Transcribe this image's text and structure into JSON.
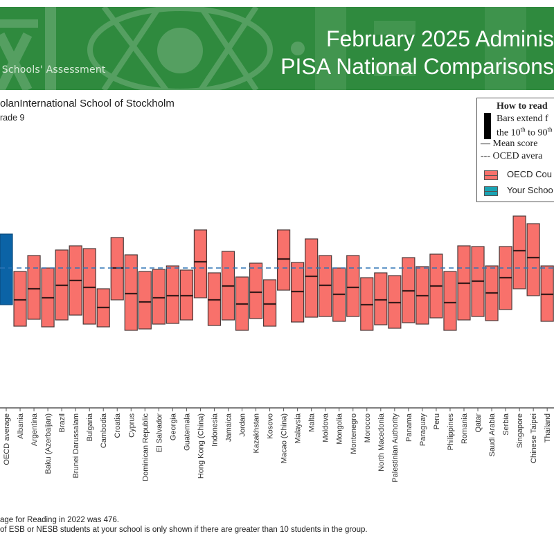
{
  "header": {
    "org_text": "l Schools' Assessment",
    "title_line1": "February 2025 Adminis",
    "title_line2": "PISA National Comparisons",
    "banner_color": "#2f8a3e"
  },
  "subheader": {
    "school": "olanInternational School of Stockholm",
    "grade": "rade 9"
  },
  "legend": {
    "title": "How to read",
    "bars_line1": "Bars extend f",
    "bars_line2_pre": "the 10",
    "bars_line2_sup1": "th",
    "bars_line2_mid": " to 90",
    "bars_line2_sup2": "th",
    "mean_label": "—  Mean score",
    "oced_label": "---  OCED avera",
    "oecd_countries": "OECD Cou",
    "your_school": "Your Schoo"
  },
  "footnotes": {
    "line1": "age for Reading in 2022 was 476.",
    "line2": "of ESB or NESB students at your school is only shown if there are greater than 10 students in the group."
  },
  "chart_data": {
    "type": "bar",
    "subtype": "floating-range-with-mean",
    "title": "PISA National Comparisons",
    "xlabel": "",
    "ylabel": "",
    "grid": false,
    "legend_position": "top-right",
    "reference_line": {
      "label": "OECD average",
      "value": 476,
      "style": "dashed",
      "color": "#2e75b6"
    },
    "colors": {
      "oecd_average": "#0b63a6",
      "country": "#f8716b",
      "your_school": "#1aa3b3",
      "mean_line": "#3a1a1a",
      "edge": "#4a3a3a"
    },
    "ylim": [
      250,
      700
    ],
    "categories": [
      "OECD average",
      "Albania",
      "Argentina",
      "Baku (Azerbaijan)",
      "Brazil",
      "Brunei Darussalam",
      "Bulgaria",
      "Cambodia",
      "Croatia",
      "Cyprus",
      "Dominican Republic",
      "El Salvador",
      "Georgia",
      "Guatemala",
      "Hong Kong (China)",
      "Indonesia",
      "Jamaica",
      "Jordan",
      "Kazakhstan",
      "Kosovo",
      "Macao (China)",
      "Malaysia",
      "Malta",
      "Moldova",
      "Mongolia",
      "Montenegro",
      "Morocco",
      "North Macedonia",
      "Palestinian Authority",
      "Panama",
      "Paraguay",
      "Peru",
      "Philippines",
      "Romania",
      "Qatar",
      "Saudi Arabia",
      "Serbia",
      "Singapore",
      "Chinese Taipei",
      "Thailand"
    ],
    "series": [
      {
        "name": "90th percentile",
        "values": [
          574,
          466,
          512,
          476,
          528,
          540,
          532,
          416,
          564,
          514,
          466,
          472,
          482,
          470,
          586,
          462,
          524,
          450,
          490,
          442,
          586,
          492,
          560,
          512,
          476,
          512,
          448,
          462,
          454,
          506,
          480,
          516,
          466,
          540,
          538,
          482,
          538,
          626,
          604,
          482
        ]
      },
      {
        "name": "Mean score",
        "values": [
          476,
          384,
          416,
          390,
          426,
          440,
          420,
          362,
          476,
          402,
          378,
          390,
          396,
          396,
          494,
          384,
          424,
          372,
          406,
          372,
          502,
          408,
          452,
          426,
          400,
          420,
          370,
          384,
          376,
          410,
          396,
          424,
          376,
          432,
          438,
          404,
          448,
          526,
          506,
          400
        ]
      },
      {
        "name": "10th percentile",
        "values": [
          370,
          308,
          328,
          306,
          326,
          340,
          314,
          306,
          384,
          296,
          300,
          314,
          316,
          326,
          390,
          310,
          326,
          296,
          330,
          308,
          412,
          320,
          334,
          336,
          322,
          336,
          296,
          312,
          302,
          318,
          314,
          332,
          296,
          326,
          336,
          324,
          356,
          416,
          396,
          322
        ]
      }
    ],
    "highlight": {
      "category": "OECD average",
      "color": "#0b63a6"
    }
  }
}
